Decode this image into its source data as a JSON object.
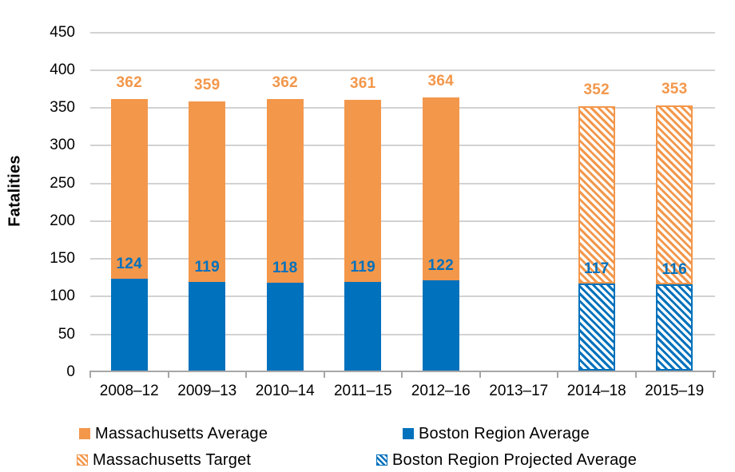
{
  "chart_data": {
    "type": "bar",
    "variant": "overlay-stacked",
    "title": "",
    "xlabel": "",
    "ylabel": "Fatalities",
    "ylim": [
      0,
      450
    ],
    "ytick_step": 50,
    "grid": true,
    "legend_position": "bottom",
    "categories": [
      "2008–12",
      "2009–13",
      "2010–14",
      "2011–15",
      "2012–16",
      "2013–17",
      "2014–18",
      "2015–19"
    ],
    "series": [
      {
        "name": "Massachusetts Average",
        "style": "solid",
        "color": "#F3974B",
        "values": [
          362,
          359,
          362,
          361,
          364,
          null,
          null,
          null
        ]
      },
      {
        "name": "Boston Region Average",
        "style": "solid",
        "color": "#0071BC",
        "values": [
          124,
          119,
          118,
          119,
          122,
          null,
          null,
          null
        ]
      },
      {
        "name": "Massachusetts Target",
        "style": "hatched",
        "color": "#F3974B",
        "values": [
          null,
          null,
          null,
          null,
          null,
          null,
          352,
          353
        ]
      },
      {
        "name": "Boston Region Projected Average",
        "style": "hatched",
        "color": "#0071BC",
        "values": [
          null,
          null,
          null,
          null,
          null,
          null,
          117,
          116
        ]
      }
    ]
  },
  "colors": {
    "orange": "#F3974B",
    "blue": "#0071BC",
    "gridline": "#D2D2D2",
    "axis_line": "#A6A6A6",
    "text": "#000000"
  }
}
